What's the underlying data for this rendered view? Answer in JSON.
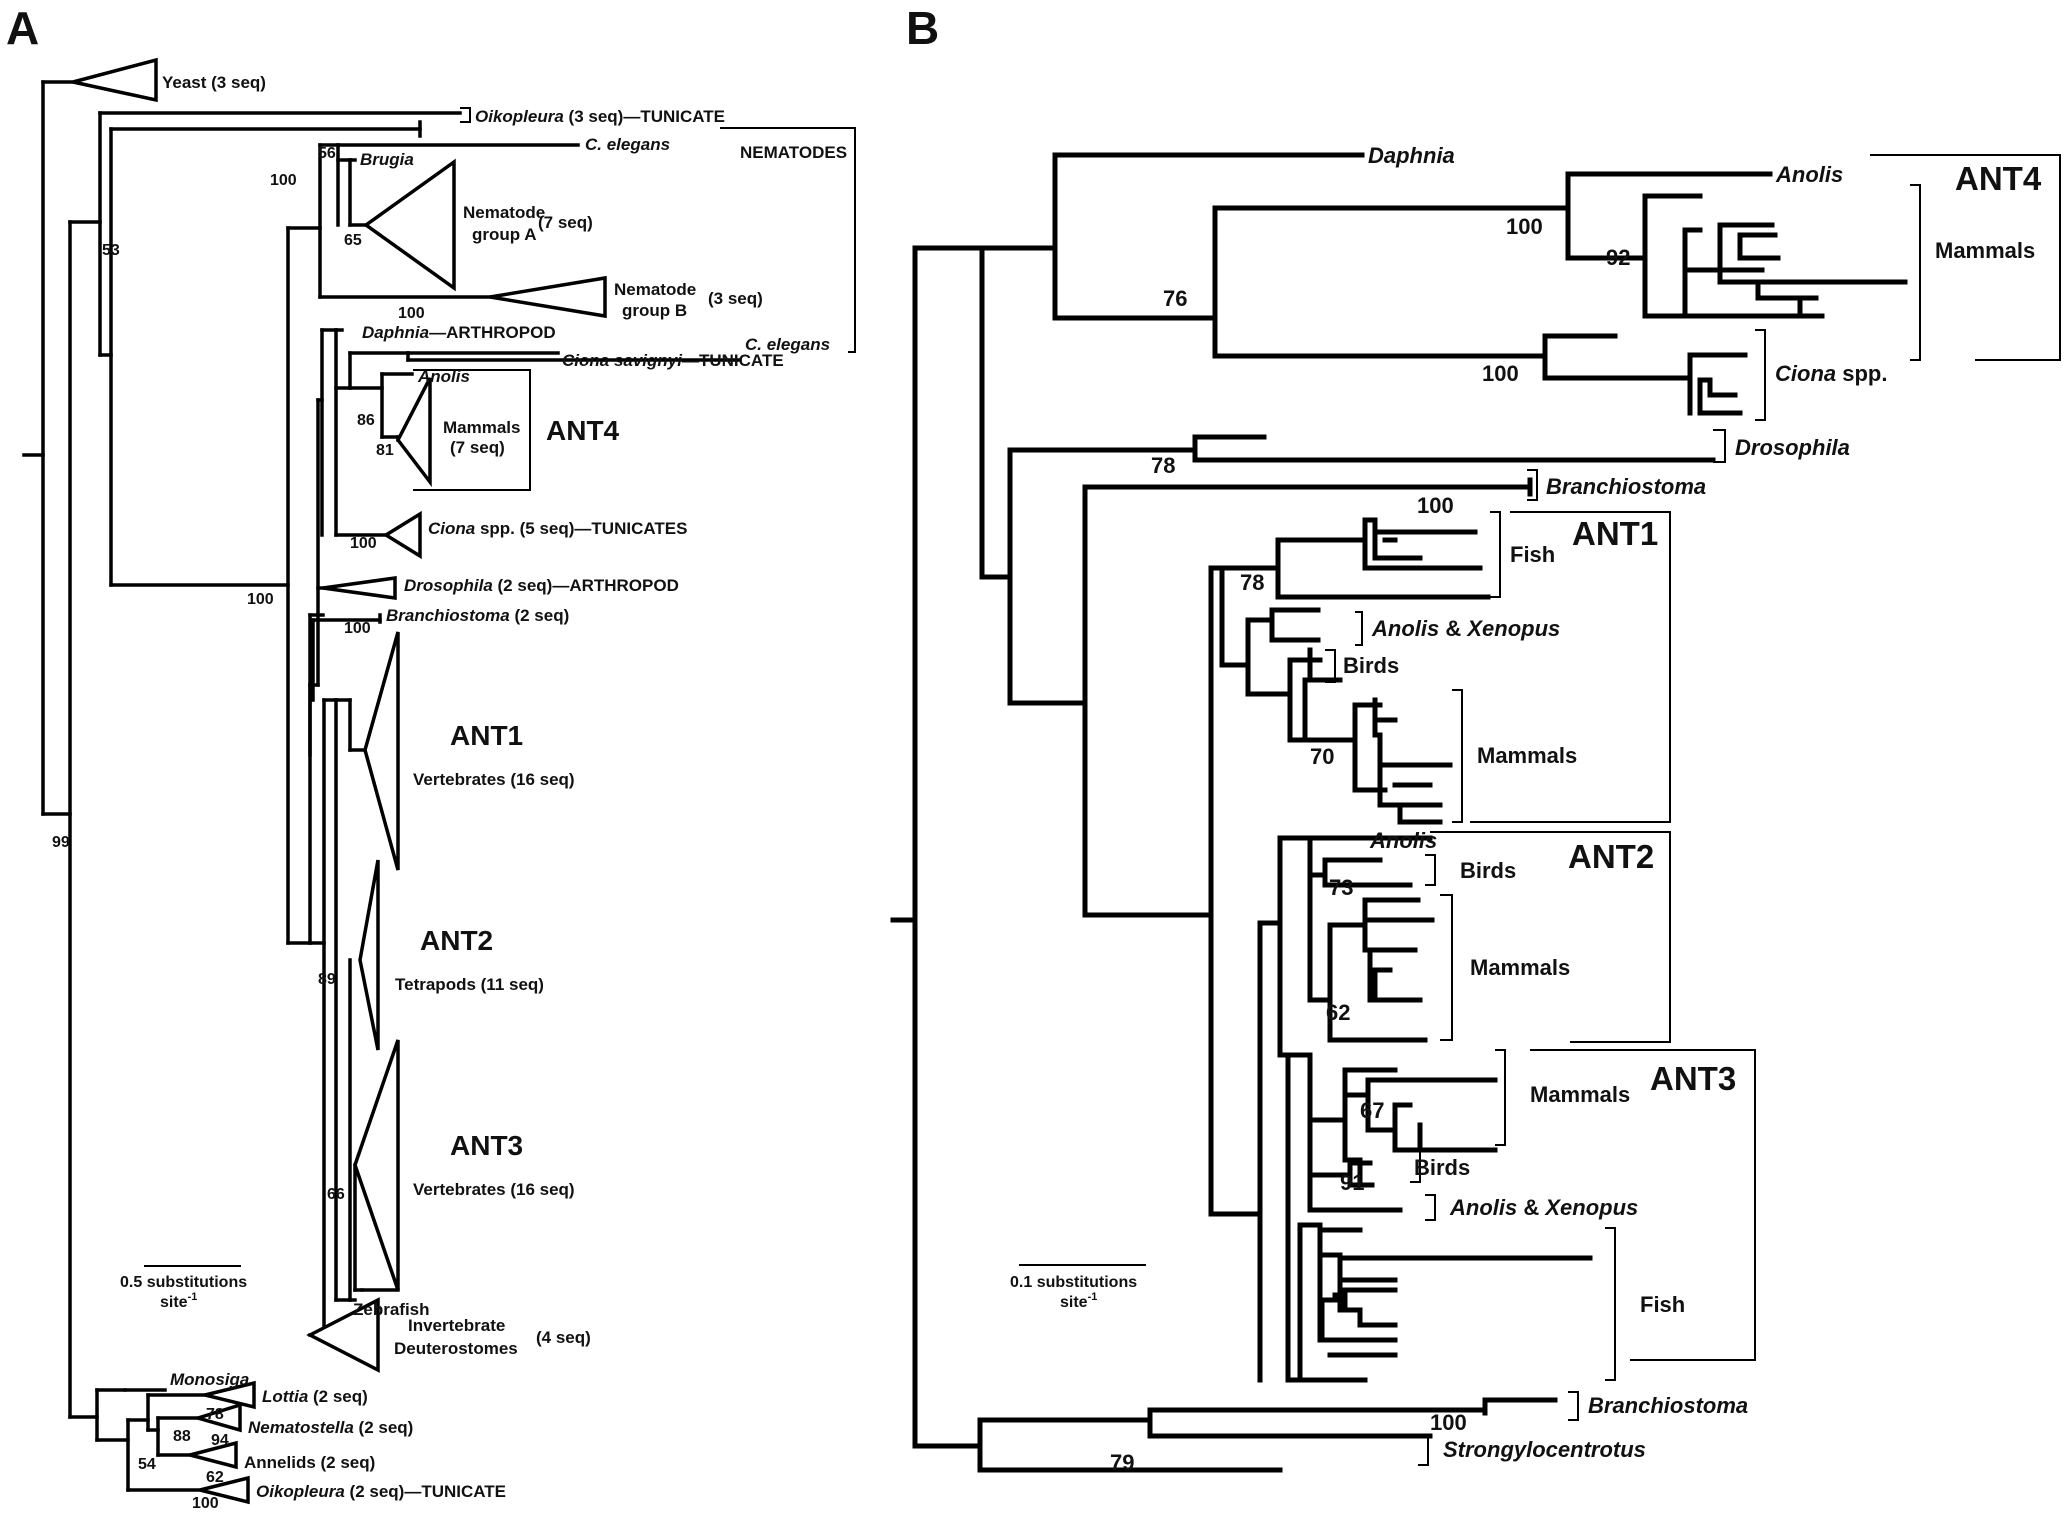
{
  "panels": {
    "a": {
      "label": "A",
      "tips": {
        "yeast": "Yeast (3 seq)",
        "oiko_a": "Oikopleura",
        "oiko_b": " (3 seq)—TUNICATE",
        "celegans1": "C. elegans",
        "nematodes": "NEMATODES",
        "brugia": "Brugia",
        "nemA_1": "Nematode",
        "nemA_2": "group A",
        "nemA_3": "(7 seq)",
        "nemB_1": "Nematode",
        "nemB_2": "group B",
        "nemB_3": "(3 seq)",
        "daphnia_a": "Daphnia",
        "daphnia_b": "—ARTHROPOD",
        "celegans2": "C. elegans",
        "ciona_sav_a": "Ciona savignyi",
        "ciona_sav_b": "—TUNICATE",
        "anolis": "Anolis",
        "mammals_1": "Mammals",
        "mammals_2": "(7 seq)",
        "ant4": "ANT4",
        "ciona_a": "Ciona",
        "ciona_b": " spp. (5 seq)—TUNICATES",
        "dros_a": "Drosophila",
        "dros_b": " (2 seq)—ARTHROPOD",
        "branch_a": "Branchiostoma",
        "branch_b": " (2 seq)",
        "ant1": "ANT1",
        "ant1_sub": "Vertebrates (16 seq)",
        "ant2": "ANT2",
        "ant2_sub": "Tetrapods (11 seq)",
        "ant3": "ANT3",
        "ant3_sub": "Vertebrates (16 seq)",
        "zebrafish": "Zebrafish",
        "inv_1": "Invertebrate",
        "inv_2": "Deuterostomes",
        "inv_3": "(4 seq)",
        "monosiga": "Monosiga",
        "lottia_a": "Lottia",
        "lottia_b": " (2 seq)",
        "nemato_a": "Nematostella",
        "nemato_b": " (2 seq)",
        "annelids": "Annelids (2 seq)",
        "oiko2_a": "Oikopleura",
        "oiko2_b": " (2 seq)—TUNICATE"
      },
      "support": {
        "s99": "99",
        "s53": "53",
        "s100a": "100",
        "s56": "56",
        "s65": "65",
        "s100b": "100",
        "s86": "86",
        "s81": "81",
        "s100c": "100",
        "s100d": "100",
        "s100e": "100",
        "s89": "89",
        "s66": "66",
        "s78": "78",
        "s88": "88",
        "s94": "94",
        "s62": "62",
        "s54": "54",
        "s100f": "100"
      },
      "scale": {
        "line1": "0.5 substitutions",
        "line2": "site",
        "sup": "-1"
      }
    },
    "b": {
      "label": "B",
      "tips": {
        "daphnia": "Daphnia",
        "anolis_top": "Anolis",
        "ant4": "ANT4",
        "mammals_ant4": "Mammals",
        "ciona_a": "Ciona",
        "ciona_b": " spp.",
        "drosophila": "Drosophila",
        "branchiostoma": "Branchiostoma",
        "ant1": "ANT1",
        "fish1": "Fish",
        "anolis_xen1_a": "Anolis",
        "anolis_xen1_b": " & ",
        "anolis_xen1_c": "Xenopus",
        "birds1": "Birds",
        "mammals1": "Mammals",
        "anolis_ant2": "Anolis",
        "ant2": "ANT2",
        "birds2": "Birds",
        "mammals2": "Mammals",
        "ant3": "ANT3",
        "mammals3": "Mammals",
        "birds3": "Birds",
        "anolis_xen3_a": "Anolis",
        "anolis_xen3_b": " & ",
        "anolis_xen3_c": "Xenopus",
        "fish3": "Fish",
        "branchiostoma2": "Branchiostoma",
        "strongylo": "Strongylocentrotus"
      },
      "support": {
        "s76": "76",
        "s100a": "100",
        "s92": "92",
        "s100b": "100",
        "s78a": "78",
        "s100c": "100",
        "s78b": "78",
        "s70": "70",
        "s73": "73",
        "s62": "62",
        "s67": "67",
        "s91": "91",
        "s79": "79",
        "s100d": "100"
      },
      "scale": {
        "line1": "0.1 substitutions",
        "line2": "site",
        "sup": "-1"
      }
    }
  }
}
